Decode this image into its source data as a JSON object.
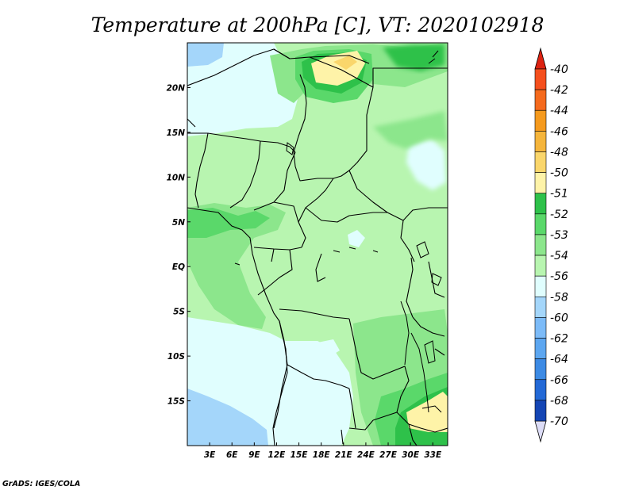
{
  "title": "Temperature at 200hPa [C], VT: 2020102918",
  "credit": "GrADS: IGES/COLA",
  "map": {
    "lon_range": [
      0,
      35
    ],
    "lat_range": [
      -20,
      25
    ],
    "lat_ticks": [
      {
        "label": "20N",
        "value": 20
      },
      {
        "label": "15N",
        "value": 15
      },
      {
        "label": "10N",
        "value": 10
      },
      {
        "label": "5N",
        "value": 5
      },
      {
        "label": "EQ",
        "value": 0
      },
      {
        "label": "5S",
        "value": -5
      },
      {
        "label": "10S",
        "value": -10
      },
      {
        "label": "15S",
        "value": -15
      }
    ],
    "lon_ticks": [
      {
        "label": "3E",
        "value": 3
      },
      {
        "label": "6E",
        "value": 6
      },
      {
        "label": "9E",
        "value": 9
      },
      {
        "label": "12E",
        "value": 12
      },
      {
        "label": "15E",
        "value": 15
      },
      {
        "label": "18E",
        "value": 18
      },
      {
        "label": "21E",
        "value": 21
      },
      {
        "label": "24E",
        "value": 24
      },
      {
        "label": "27E",
        "value": 27
      },
      {
        "label": "30E",
        "value": 30
      },
      {
        "label": "33E",
        "value": 33
      }
    ]
  },
  "colorbar": {
    "levels": [
      {
        "label": "-40",
        "color": "#f54f1d"
      },
      {
        "label": "-42",
        "color": "#f56a1d"
      },
      {
        "label": "-44",
        "color": "#f59a1d"
      },
      {
        "label": "-46",
        "color": "#f5b53b"
      },
      {
        "label": "-48",
        "color": "#fad66b"
      },
      {
        "label": "-50",
        "color": "#fef3a8"
      },
      {
        "label": "-51",
        "color": "#2ec14a"
      },
      {
        "label": "-52",
        "color": "#5ad86a"
      },
      {
        "label": "-53",
        "color": "#8ce68c"
      },
      {
        "label": "-54",
        "color": "#b8f5b0"
      },
      {
        "label": "-56",
        "color": "#e0fefe"
      },
      {
        "label": "-58",
        "color": "#a4d6fa"
      },
      {
        "label": "-60",
        "color": "#7cbbf8"
      },
      {
        "label": "-62",
        "color": "#5ca6f0"
      },
      {
        "label": "-64",
        "color": "#3c8ae4"
      },
      {
        "label": "-66",
        "color": "#2369d6"
      },
      {
        "label": "-68",
        "color": "#1445b4"
      },
      {
        "label": "-70",
        "color": "#0b1a8a"
      }
    ],
    "top_cap_color": "#dd2211",
    "bottom_cap_color": "#dcdcf6"
  }
}
